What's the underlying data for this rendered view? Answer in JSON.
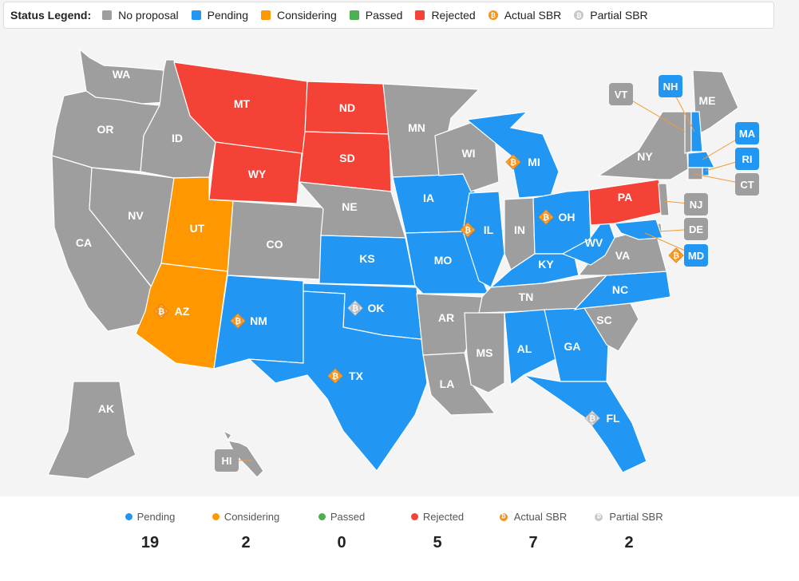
{
  "legend": {
    "title": "Status Legend:",
    "items": [
      {
        "label": "No proposal",
        "color": "#9e9e9e",
        "icon": "square"
      },
      {
        "label": "Pending",
        "color": "#2196f3",
        "icon": "square"
      },
      {
        "label": "Considering",
        "color": "#ff9800",
        "icon": "square"
      },
      {
        "label": "Passed",
        "color": "#4caf50",
        "icon": "square"
      },
      {
        "label": "Rejected",
        "color": "#f44336",
        "icon": "square"
      },
      {
        "label": "Actual SBR",
        "color": "#f7931a",
        "icon": "bitcoin-icon"
      },
      {
        "label": "Partial SBR",
        "color": "#c8c8c8",
        "icon": "bitcoin-icon"
      }
    ]
  },
  "colors": {
    "none": "#9e9e9e",
    "pending": "#2196f3",
    "considering": "#ff9800",
    "passed": "#4caf50",
    "rejected": "#f44336",
    "actual": "#f7931a",
    "partial": "#c8c8c8"
  },
  "states": [
    {
      "abbr": "WA",
      "status": "none"
    },
    {
      "abbr": "OR",
      "status": "none"
    },
    {
      "abbr": "CA",
      "status": "none"
    },
    {
      "abbr": "NV",
      "status": "none"
    },
    {
      "abbr": "ID",
      "status": "none"
    },
    {
      "abbr": "MT",
      "status": "rejected"
    },
    {
      "abbr": "WY",
      "status": "rejected"
    },
    {
      "abbr": "UT",
      "status": "considering"
    },
    {
      "abbr": "AZ",
      "status": "considering",
      "sbr": "actual"
    },
    {
      "abbr": "CO",
      "status": "none"
    },
    {
      "abbr": "NM",
      "status": "pending",
      "sbr": "actual"
    },
    {
      "abbr": "ND",
      "status": "rejected"
    },
    {
      "abbr": "SD",
      "status": "rejected"
    },
    {
      "abbr": "NE",
      "status": "none"
    },
    {
      "abbr": "KS",
      "status": "pending"
    },
    {
      "abbr": "OK",
      "status": "pending",
      "sbr": "partial"
    },
    {
      "abbr": "TX",
      "status": "pending",
      "sbr": "actual"
    },
    {
      "abbr": "MN",
      "status": "none"
    },
    {
      "abbr": "IA",
      "status": "pending"
    },
    {
      "abbr": "MO",
      "status": "pending"
    },
    {
      "abbr": "AR",
      "status": "none"
    },
    {
      "abbr": "LA",
      "status": "none"
    },
    {
      "abbr": "WI",
      "status": "none"
    },
    {
      "abbr": "IL",
      "status": "pending",
      "sbr": "actual"
    },
    {
      "abbr": "MI",
      "status": "pending",
      "sbr": "actual"
    },
    {
      "abbr": "IN",
      "status": "none"
    },
    {
      "abbr": "OH",
      "status": "pending",
      "sbr": "actual"
    },
    {
      "abbr": "KY",
      "status": "pending"
    },
    {
      "abbr": "TN",
      "status": "none"
    },
    {
      "abbr": "MS",
      "status": "none"
    },
    {
      "abbr": "AL",
      "status": "pending"
    },
    {
      "abbr": "GA",
      "status": "pending"
    },
    {
      "abbr": "FL",
      "status": "pending",
      "sbr": "partial"
    },
    {
      "abbr": "SC",
      "status": "none"
    },
    {
      "abbr": "NC",
      "status": "pending"
    },
    {
      "abbr": "VA",
      "status": "none"
    },
    {
      "abbr": "WV",
      "status": "pending"
    },
    {
      "abbr": "PA",
      "status": "rejected"
    },
    {
      "abbr": "NY",
      "status": "none"
    },
    {
      "abbr": "ME",
      "status": "none"
    },
    {
      "abbr": "AK",
      "status": "none"
    },
    {
      "abbr": "VT",
      "status": "none"
    },
    {
      "abbr": "NH",
      "status": "pending"
    },
    {
      "abbr": "MA",
      "status": "pending"
    },
    {
      "abbr": "RI",
      "status": "pending"
    },
    {
      "abbr": "CT",
      "status": "none"
    },
    {
      "abbr": "NJ",
      "status": "none"
    },
    {
      "abbr": "DE",
      "status": "none"
    },
    {
      "abbr": "MD",
      "status": "pending",
      "sbr": "actual"
    },
    {
      "abbr": "HI",
      "status": "none"
    }
  ],
  "stats": [
    {
      "label": "Pending",
      "value": "19",
      "color": "#2196f3",
      "icon": "dot"
    },
    {
      "label": "Considering",
      "value": "2",
      "color": "#ff9800",
      "icon": "dot"
    },
    {
      "label": "Passed",
      "value": "0",
      "color": "#4caf50",
      "icon": "dot"
    },
    {
      "label": "Rejected",
      "value": "5",
      "color": "#f44336",
      "icon": "dot"
    },
    {
      "label": "Actual SBR",
      "value": "7",
      "color": "#f7931a",
      "icon": "bitcoin-icon"
    },
    {
      "label": "Partial SBR",
      "value": "2",
      "color": "#c8c8c8",
      "icon": "bitcoin-icon"
    }
  ]
}
